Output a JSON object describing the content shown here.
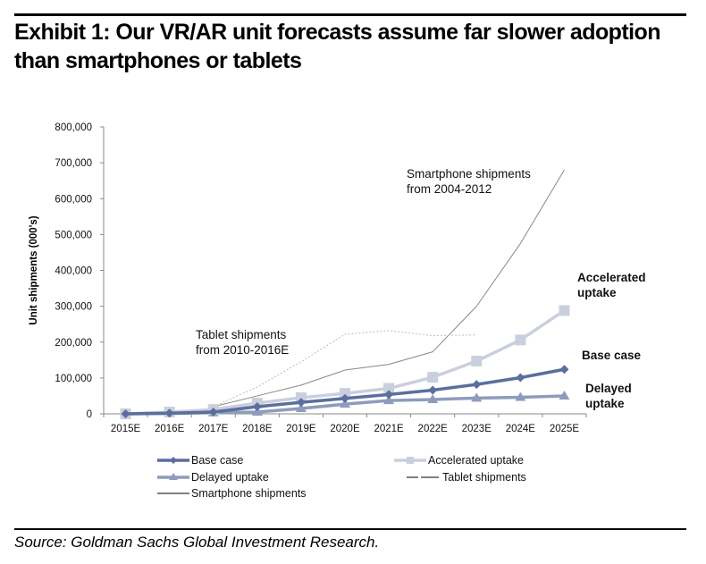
{
  "title": "Exhibit 1: Our VR/AR unit forecasts assume far slower adoption than smartphones or tablets",
  "source": "Source: Goldman Sachs Global Investment Research.",
  "chart_data": {
    "type": "line",
    "title": "",
    "xlabel": "",
    "ylabel": "Unit shipments (000's)",
    "ylim": [
      0,
      800000
    ],
    "yticks": [
      0,
      100000,
      200000,
      300000,
      400000,
      500000,
      600000,
      700000,
      800000
    ],
    "ytick_labels": [
      "0",
      "100,000",
      "200,000",
      "300,000",
      "400,000",
      "500,000",
      "600,000",
      "700,000",
      "800,000"
    ],
    "categories": [
      "2015E",
      "2016E",
      "2017E",
      "2018E",
      "2019E",
      "2020E",
      "2021E",
      "2022E",
      "2023E",
      "2024E",
      "2025E"
    ],
    "grid": false,
    "legend_position": "bottom",
    "series": [
      {
        "name": "Base case",
        "color": "#5a6f9c",
        "marker": "diamond",
        "values": [
          0,
          2000,
          5000,
          20000,
          32000,
          43000,
          54000,
          66000,
          82000,
          101000,
          124000
        ]
      },
      {
        "name": "Accelerated uptake",
        "color": "#c9cfdd",
        "marker": "square",
        "values": [
          0,
          5000,
          12000,
          30000,
          45000,
          57000,
          71000,
          102000,
          147000,
          206000,
          288000
        ]
      },
      {
        "name": "Delayed uptake",
        "color": "#8e9cbc",
        "marker": "triangle",
        "values": [
          0,
          1000,
          3000,
          5000,
          15000,
          27000,
          37000,
          40000,
          44000,
          46000,
          50000
        ]
      },
      {
        "name": "Tablet shipments",
        "color": "#bbbbbb",
        "marker": "none",
        "dash": true,
        "values": [
          null,
          null,
          20000,
          75000,
          145000,
          222000,
          232000,
          218000,
          220000,
          null,
          null
        ]
      },
      {
        "name": "Smartphone shipments",
        "color": "#888888",
        "marker": "none",
        "values": [
          null,
          null,
          20000,
          50000,
          80000,
          122000,
          138000,
          173000,
          300000,
          475000,
          680000
        ]
      }
    ],
    "annotations": [
      {
        "text": [
          "Smartphone shipments",
          "from 2004-2012"
        ],
        "bold": false
      },
      {
        "text": [
          "Tablet shipments",
          "from 2010-2016E"
        ],
        "bold": false
      },
      {
        "text": [
          "Accelerated",
          "uptake"
        ],
        "bold": true
      },
      {
        "text": [
          "Base case"
        ],
        "bold": true
      },
      {
        "text": [
          "Delayed",
          "uptake"
        ],
        "bold": true
      }
    ]
  }
}
